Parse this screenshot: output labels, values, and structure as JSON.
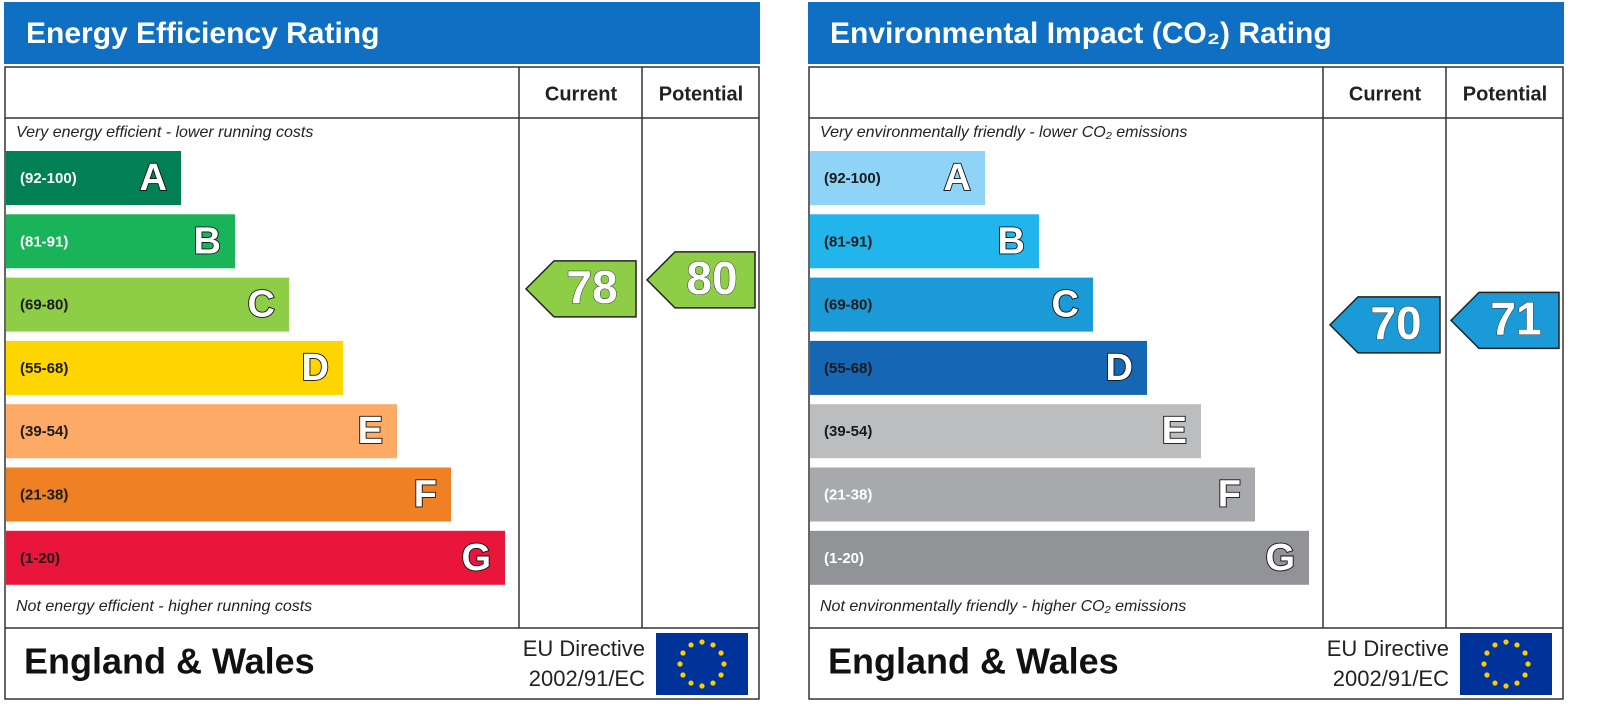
{
  "panels": [
    {
      "title": "Energy Efficiency Rating",
      "columns": [
        "Current",
        "Potential"
      ],
      "top_note": "Very energy efficient - lower running costs",
      "bottom_note": "Not energy efficient - higher running costs",
      "bands": [
        {
          "range": "(92-100)",
          "letter": "A",
          "color": "#008054",
          "label_color": "#ffffff"
        },
        {
          "range": "(81-91)",
          "letter": "B",
          "color": "#19b459",
          "label_color": "#ffffff"
        },
        {
          "range": "(69-80)",
          "letter": "C",
          "color": "#8dce46",
          "label_color": "#1a1a1a"
        },
        {
          "range": "(55-68)",
          "letter": "D",
          "color": "#ffd500",
          "label_color": "#1a1a1a"
        },
        {
          "range": "(39-54)",
          "letter": "E",
          "color": "#fcaa65",
          "label_color": "#1a1a1a"
        },
        {
          "range": "(21-38)",
          "letter": "F",
          "color": "#ef8023",
          "label_color": "#1a1a1a"
        },
        {
          "range": "(1-20)",
          "letter": "G",
          "color": "#e9153b",
          "label_color": "#1a1a1a"
        }
      ],
      "current": 78,
      "potential": 80,
      "region": "England & Wales",
      "directive": [
        "EU Directive",
        "2002/91/EC"
      ]
    },
    {
      "title": "Environmental Impact (CO₂) Rating",
      "columns": [
        "Current",
        "Potential"
      ],
      "top_note": "Very environmentally friendly - lower CO₂ emissions",
      "bottom_note": "Not environmentally friendly - higher CO₂ emissions",
      "bands": [
        {
          "range": "(92-100)",
          "letter": "A",
          "color": "#8fd3f6",
          "label_color": "#1a1a1a"
        },
        {
          "range": "(81-91)",
          "letter": "B",
          "color": "#22b5eb",
          "label_color": "#1a1a1a"
        },
        {
          "range": "(69-80)",
          "letter": "C",
          "color": "#1a9ad6",
          "label_color": "#1a1a1a"
        },
        {
          "range": "(55-68)",
          "letter": "D",
          "color": "#1566b3",
          "label_color": "#1a1a1a"
        },
        {
          "range": "(39-54)",
          "letter": "E",
          "color": "#bbbdbf",
          "label_color": "#1a1a1a"
        },
        {
          "range": "(21-38)",
          "letter": "F",
          "color": "#a7a9ac",
          "label_color": "#ffffff"
        },
        {
          "range": "(1-20)",
          "letter": "G",
          "color": "#919396",
          "label_color": "#ffffff"
        }
      ],
      "current": 70,
      "potential": 71,
      "region": "England & Wales",
      "directive": [
        "EU Directive",
        "2002/91/EC"
      ]
    }
  ]
}
